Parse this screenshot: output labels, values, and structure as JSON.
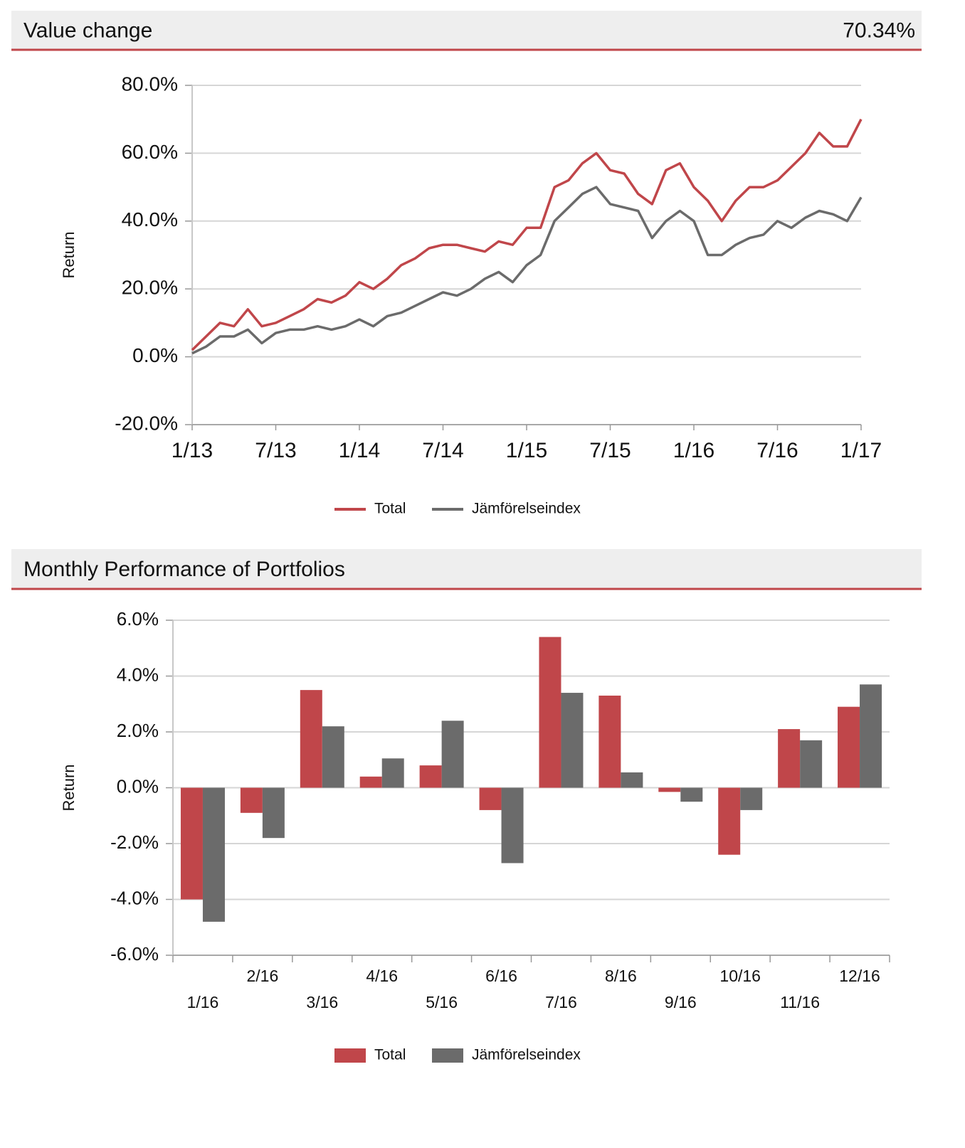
{
  "chart_data": [
    {
      "type": "line",
      "title": "Value change",
      "summary": "70.34%",
      "y_label": "Return",
      "x": [
        "2013-01",
        "2013-02",
        "2013-03",
        "2013-04",
        "2013-05",
        "2013-06",
        "2013-07",
        "2013-08",
        "2013-09",
        "2013-10",
        "2013-11",
        "2013-12",
        "2014-01",
        "2014-02",
        "2014-03",
        "2014-04",
        "2014-05",
        "2014-06",
        "2014-07",
        "2014-08",
        "2014-09",
        "2014-10",
        "2014-11",
        "2014-12",
        "2015-01",
        "2015-02",
        "2015-03",
        "2015-04",
        "2015-05",
        "2015-06",
        "2015-07",
        "2015-08",
        "2015-09",
        "2015-10",
        "2015-11",
        "2015-12",
        "2016-01",
        "2016-02",
        "2016-03",
        "2016-04",
        "2016-05",
        "2016-06",
        "2016-07",
        "2016-08",
        "2016-09",
        "2016-10",
        "2016-11",
        "2016-12",
        "2017-01"
      ],
      "series": [
        {
          "name": "Total",
          "color": "#c0464a",
          "values": [
            2,
            6,
            10,
            9,
            14,
            9,
            10,
            12,
            14,
            17,
            16,
            18,
            22,
            20,
            23,
            27,
            29,
            32,
            33,
            33,
            32,
            31,
            34,
            33,
            38,
            38,
            50,
            52,
            57,
            60,
            55,
            54,
            48,
            45,
            55,
            57,
            50,
            46,
            40,
            46,
            50,
            50,
            52,
            56,
            60,
            66,
            62,
            62,
            70
          ]
        },
        {
          "name": "Jämförelseindex",
          "color": "#6b6b6b",
          "values": [
            1,
            3,
            6,
            6,
            8,
            4,
            7,
            8,
            8,
            9,
            8,
            9,
            11,
            9,
            12,
            13,
            15,
            17,
            19,
            18,
            20,
            23,
            25,
            22,
            27,
            30,
            40,
            44,
            48,
            50,
            45,
            44,
            43,
            35,
            40,
            43,
            40,
            30,
            30,
            33,
            35,
            36,
            40,
            38,
            41,
            43,
            42,
            40,
            47
          ]
        }
      ],
      "xlim": [
        "2013-01",
        "2017-01"
      ],
      "xticks": [
        {
          "value": "2013-01",
          "label": "1/13"
        },
        {
          "value": "2013-07",
          "label": "7/13"
        },
        {
          "value": "2014-01",
          "label": "1/14"
        },
        {
          "value": "2014-07",
          "label": "7/14"
        },
        {
          "value": "2015-01",
          "label": "1/15"
        },
        {
          "value": "2015-07",
          "label": "7/15"
        },
        {
          "value": "2016-01",
          "label": "1/16"
        },
        {
          "value": "2016-07",
          "label": "7/16"
        },
        {
          "value": "2017-01",
          "label": "1/17"
        }
      ],
      "ylim": [
        -20,
        80
      ],
      "yticks": [
        {
          "value": -20,
          "label": "-20.0%"
        },
        {
          "value": 0,
          "label": "0.0%"
        },
        {
          "value": 20,
          "label": "20.0%"
        },
        {
          "value": 40,
          "label": "40.0%"
        },
        {
          "value": 60,
          "label": "60.0%"
        },
        {
          "value": 80,
          "label": "80.0%"
        }
      ],
      "grid": true
    },
    {
      "type": "bar",
      "title": "Monthly Performance of Portfolios",
      "y_label": "Return",
      "categories": [
        "1/16",
        "2/16",
        "3/16",
        "4/16",
        "5/16",
        "6/16",
        "7/16",
        "8/16",
        "9/16",
        "10/16",
        "11/16",
        "12/16"
      ],
      "series": [
        {
          "name": "Total",
          "color": "#c0464a",
          "values": [
            -4.0,
            -0.9,
            3.5,
            0.4,
            0.8,
            -0.8,
            5.4,
            3.3,
            -0.15,
            -2.4,
            2.1,
            2.9
          ]
        },
        {
          "name": "Jämförelseindex",
          "color": "#6b6b6b",
          "values": [
            -4.8,
            -1.8,
            2.2,
            1.05,
            2.4,
            -2.7,
            3.4,
            0.55,
            -0.5,
            -0.8,
            1.7,
            3.7
          ]
        }
      ],
      "ylim": [
        -6,
        6
      ],
      "yticks": [
        {
          "value": -6,
          "label": "-6.0%"
        },
        {
          "value": -4,
          "label": "-4.0%"
        },
        {
          "value": -2,
          "label": "-2.0%"
        },
        {
          "value": 0,
          "label": "0.0%"
        },
        {
          "value": 2,
          "label": "2.0%"
        },
        {
          "value": 4,
          "label": "4.0%"
        },
        {
          "value": 6,
          "label": "6.0%"
        }
      ],
      "grid": true
    }
  ]
}
